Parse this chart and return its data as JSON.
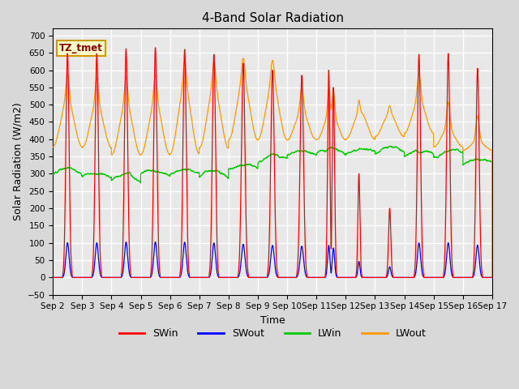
{
  "title": "4-Band Solar Radiation",
  "xlabel": "Time",
  "ylabel": "Solar Radiation (W/m2)",
  "ylim": [
    -50,
    720
  ],
  "yticks": [
    -50,
    0,
    50,
    100,
    150,
    200,
    250,
    300,
    350,
    400,
    450,
    500,
    550,
    600,
    650,
    700
  ],
  "fig_bg_color": "#d8d8d8",
  "plot_bg_color": "#e8e8e8",
  "grid_color": "#ffffff",
  "annotation_text": "TZ_tmet",
  "annotation_bg": "#ffffcc",
  "annotation_border": "#cc9900",
  "colors": {
    "SWin": "#ff0000",
    "SWout": "#0000ff",
    "LWin": "#00cc00",
    "LWout": "#ff9900"
  },
  "days": 15,
  "start_day": 2,
  "pts_per_day": 288
}
